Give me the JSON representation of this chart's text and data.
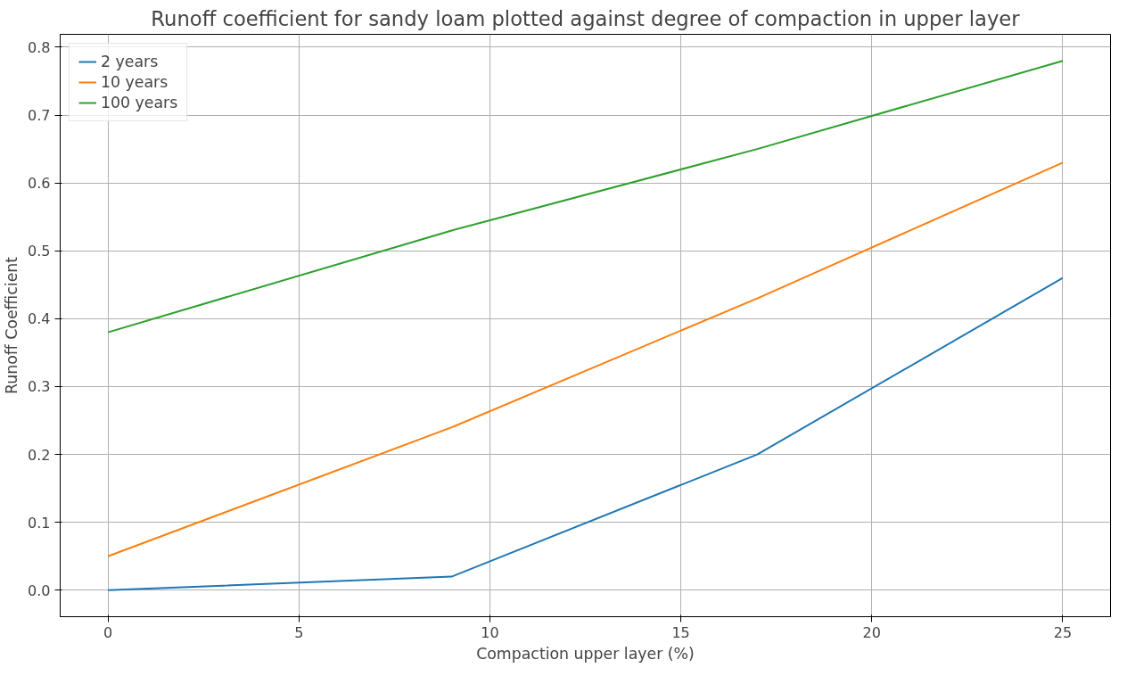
{
  "chart_data": {
    "type": "line",
    "title": "Runoff coefficient for sandy loam plotted against degree of compaction in upper layer",
    "xlabel": "Compaction upper layer (%)",
    "ylabel": "Runoff Coefficient",
    "x": [
      0,
      9,
      17,
      25
    ],
    "series": [
      {
        "name": "2 years",
        "color": "#1f77b4",
        "values": [
          0,
          0.02,
          0.2,
          0.46
        ]
      },
      {
        "name": "10 years",
        "color": "#ff7f0e",
        "values": [
          0.05,
          0.24,
          0.43,
          0.63
        ]
      },
      {
        "name": "100 years",
        "color": "#2ca02c",
        "values": [
          0.38,
          0.53,
          0.65,
          0.78
        ]
      }
    ],
    "xlim": [
      -1.25,
      26.25
    ],
    "ylim": [
      -0.039,
      0.819
    ],
    "xticks": [
      0,
      5,
      10,
      15,
      20,
      25
    ],
    "yticks": [
      {
        "value": 0,
        "label": "0.0"
      },
      0.1,
      0.2,
      0.3,
      0.4,
      0.5,
      0.6,
      0.7,
      0.8
    ],
    "grid": true,
    "legend": "top left",
    "line_style": "solid"
  }
}
